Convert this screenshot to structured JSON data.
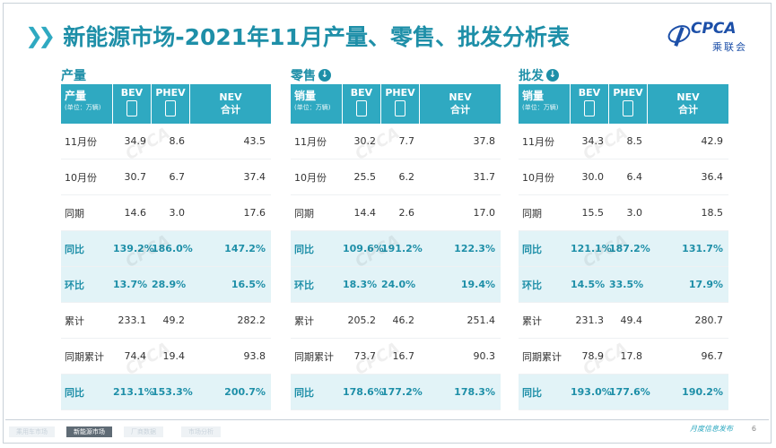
{
  "header": {
    "title": "新能源市场-2021年11月产量、零售、批发分析表",
    "logo_text": "CPCA",
    "logo_sub": "乘联会"
  },
  "sections": [
    {
      "heading": "产量",
      "has_icon": false,
      "head_label": "产量",
      "head_unit": "(单位：万辆)",
      "cols": [
        "BEV",
        "PHEV",
        "NEV\n合计"
      ],
      "rows": [
        {
          "label": "11月份",
          "v": [
            "34.9",
            "8.6",
            "43.5"
          ],
          "hl": false
        },
        {
          "label": "10月份",
          "v": [
            "30.7",
            "6.7",
            "37.4"
          ],
          "hl": false
        },
        {
          "label": "同期",
          "v": [
            "14.6",
            "3.0",
            "17.6"
          ],
          "hl": false
        },
        {
          "label": "同比",
          "v": [
            "139.2%",
            "186.0%",
            "147.2%"
          ],
          "hl": true
        },
        {
          "label": "环比",
          "v": [
            "13.7%",
            "28.9%",
            "16.5%"
          ],
          "hl": true
        },
        {
          "label": "累计",
          "v": [
            "233.1",
            "49.2",
            "282.2"
          ],
          "hl": false
        },
        {
          "label": "同期累计",
          "v": [
            "74.4",
            "19.4",
            "93.8"
          ],
          "hl": false
        },
        {
          "label": "同比",
          "v": [
            "213.1%",
            "153.3%",
            "200.7%"
          ],
          "hl": true
        }
      ]
    },
    {
      "heading": "零售",
      "has_icon": true,
      "head_label": "销量",
      "head_unit": "(单位：万辆)",
      "cols": [
        "BEV",
        "PHEV",
        "NEV\n合计"
      ],
      "rows": [
        {
          "label": "11月份",
          "v": [
            "30.2",
            "7.7",
            "37.8"
          ],
          "hl": false
        },
        {
          "label": "10月份",
          "v": [
            "25.5",
            "6.2",
            "31.7"
          ],
          "hl": false
        },
        {
          "label": "同期",
          "v": [
            "14.4",
            "2.6",
            "17.0"
          ],
          "hl": false
        },
        {
          "label": "同比",
          "v": [
            "109.6%",
            "191.2%",
            "122.3%"
          ],
          "hl": true
        },
        {
          "label": "环比",
          "v": [
            "18.3%",
            "24.0%",
            "19.4%"
          ],
          "hl": true
        },
        {
          "label": "累计",
          "v": [
            "205.2",
            "46.2",
            "251.4"
          ],
          "hl": false
        },
        {
          "label": "同期累计",
          "v": [
            "73.7",
            "16.7",
            "90.3"
          ],
          "hl": false
        },
        {
          "label": "同比",
          "v": [
            "178.6%",
            "177.2%",
            "178.3%"
          ],
          "hl": true
        }
      ]
    },
    {
      "heading": "批发",
      "has_icon": true,
      "head_label": "销量",
      "head_unit": "(单位：万辆)",
      "cols": [
        "BEV",
        "PHEV",
        "NEV\n合计"
      ],
      "rows": [
        {
          "label": "11月份",
          "v": [
            "34.3",
            "8.5",
            "42.9"
          ],
          "hl": false
        },
        {
          "label": "10月份",
          "v": [
            "30.0",
            "6.4",
            "36.4"
          ],
          "hl": false
        },
        {
          "label": "同期",
          "v": [
            "15.5",
            "3.0",
            "18.5"
          ],
          "hl": false
        },
        {
          "label": "同比",
          "v": [
            "121.1%",
            "187.2%",
            "131.7%"
          ],
          "hl": true
        },
        {
          "label": "环比",
          "v": [
            "14.5%",
            "33.5%",
            "17.9%"
          ],
          "hl": true
        },
        {
          "label": "累计",
          "v": [
            "231.3",
            "49.4",
            "280.7"
          ],
          "hl": false
        },
        {
          "label": "同期累计",
          "v": [
            "78.9",
            "17.8",
            "96.7"
          ],
          "hl": false
        },
        {
          "label": "同比",
          "v": [
            "193.0%",
            "177.6%",
            "190.2%"
          ],
          "hl": true
        }
      ]
    }
  ],
  "footer": {
    "tabs": [
      "乘用车市场",
      "新能源市场",
      "厂商数据",
      "市场分析"
    ],
    "active_tab": 1,
    "publish_text": "月度信息发布",
    "page": "6"
  },
  "colors": {
    "accent": "#2fa9c1",
    "title": "#1e8fa8",
    "highlight_row": "#e2f3f7"
  }
}
